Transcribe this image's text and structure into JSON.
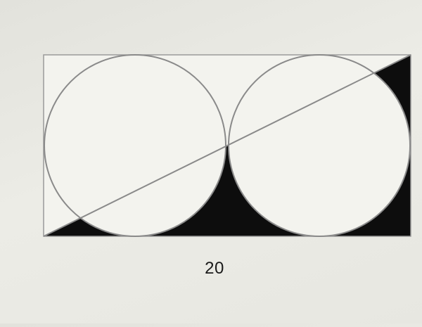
{
  "diagram": {
    "width_label": "20",
    "colors": {
      "background": "#e6e6e0",
      "shape_fill": "#f3f3ee",
      "stroke": "#8a8a8a",
      "shaded_region": "#0d0d0d"
    }
  }
}
